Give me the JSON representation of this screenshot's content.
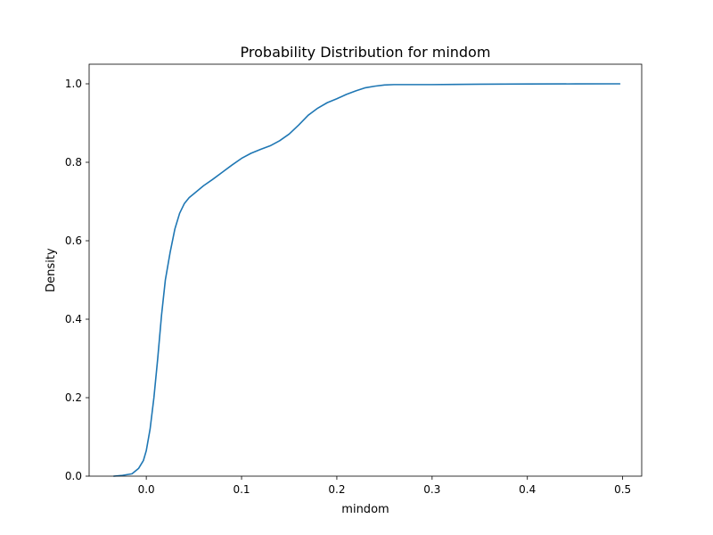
{
  "chart_data": {
    "type": "line",
    "title": "Probability Distribution for mindom",
    "xlabel": "mindom",
    "ylabel": "Density",
    "xlim": [
      -0.06,
      0.52
    ],
    "ylim": [
      0.0,
      1.05
    ],
    "xticks": [
      0.0,
      0.1,
      0.2,
      0.3,
      0.4,
      0.5
    ],
    "xtick_labels": [
      "0.0",
      "0.1",
      "0.2",
      "0.3",
      "0.4",
      "0.5"
    ],
    "yticks": [
      0.0,
      0.2,
      0.4,
      0.6,
      0.8,
      1.0
    ],
    "ytick_labels": [
      "0.0",
      "0.2",
      "0.4",
      "0.6",
      "0.8",
      "1.0"
    ],
    "grid": false,
    "series": [
      {
        "color": "#1f77b4",
        "x": [
          -0.034,
          -0.025,
          -0.015,
          -0.008,
          -0.003,
          0.0,
          0.004,
          0.008,
          0.012,
          0.016,
          0.02,
          0.025,
          0.03,
          0.035,
          0.04,
          0.045,
          0.05,
          0.06,
          0.07,
          0.08,
          0.09,
          0.1,
          0.11,
          0.12,
          0.13,
          0.14,
          0.15,
          0.16,
          0.17,
          0.18,
          0.19,
          0.2,
          0.21,
          0.22,
          0.23,
          0.24,
          0.25,
          0.26,
          0.27,
          0.3,
          0.35,
          0.4,
          0.45,
          0.497
        ],
        "y": [
          0.0,
          0.002,
          0.006,
          0.02,
          0.04,
          0.065,
          0.12,
          0.2,
          0.3,
          0.41,
          0.5,
          0.57,
          0.63,
          0.67,
          0.695,
          0.71,
          0.72,
          0.74,
          0.757,
          0.775,
          0.793,
          0.81,
          0.823,
          0.833,
          0.842,
          0.855,
          0.872,
          0.895,
          0.92,
          0.938,
          0.952,
          0.962,
          0.973,
          0.982,
          0.99,
          0.994,
          0.997,
          0.998,
          0.998,
          0.998,
          0.999,
          0.9995,
          0.9998,
          1.0
        ]
      }
    ]
  }
}
